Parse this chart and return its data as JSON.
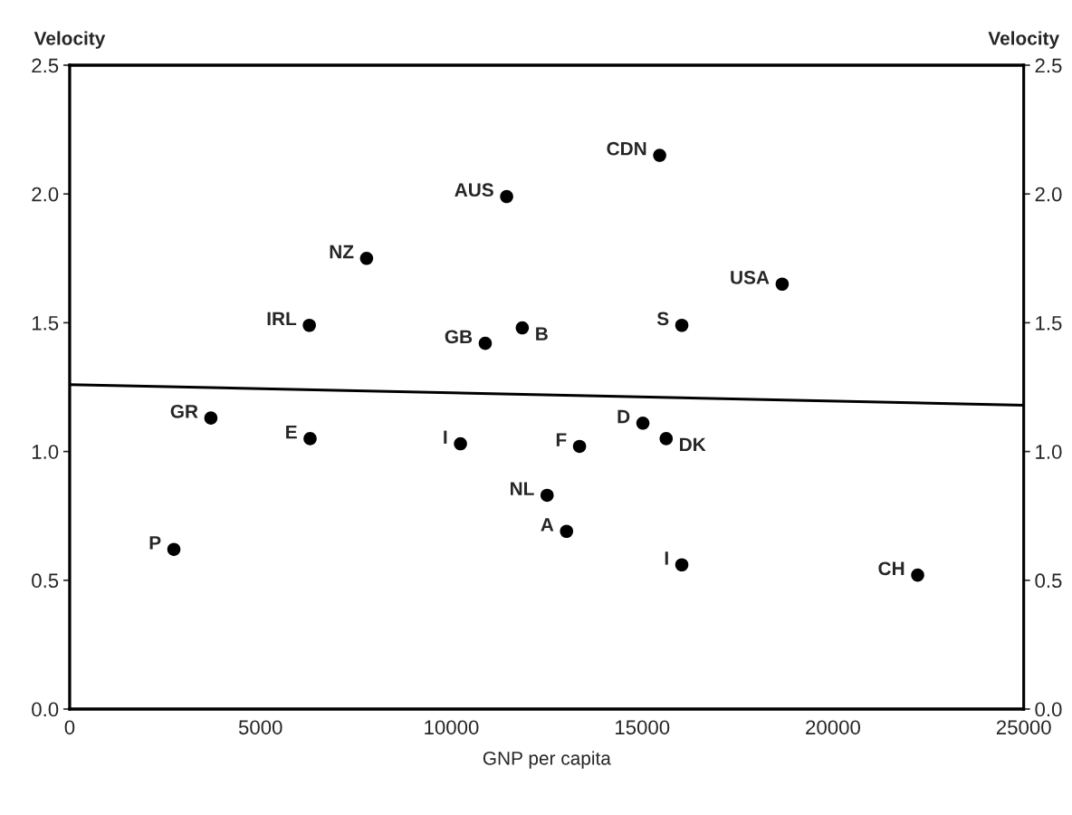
{
  "chart_data": {
    "type": "scatter",
    "xlabel": "GNP per capita",
    "ylabel": "Velocity",
    "y2label": "Velocity",
    "xlim": [
      0,
      25000
    ],
    "xticks": [
      0,
      5000,
      10000,
      15000,
      20000,
      25000
    ],
    "ylim": [
      0,
      2.5
    ],
    "yticks": [
      {
        "value": 0,
        "label": "0.0"
      },
      0.5,
      {
        "value": 1,
        "label": "1.0"
      },
      1.5,
      {
        "value": 2,
        "label": "2.0"
      },
      2.5
    ],
    "y2lim": [
      0,
      2.5
    ],
    "y2ticks": [
      {
        "value": 0,
        "label": "0.0"
      },
      0.5,
      {
        "value": 1,
        "label": "1.0"
      },
      1.5,
      {
        "value": 2,
        "label": "2.0"
      },
      2.5
    ],
    "grid": false,
    "legend": false,
    "series": [
      {
        "marker": "circle",
        "color": "#000000",
        "x": [
          15460,
          11450,
          7780,
          18670,
          6280,
          11860,
          16040,
          10890,
          3700,
          6300,
          10240,
          13360,
          15020,
          15630,
          12510,
          13020,
          2730,
          16040,
          22220
        ],
        "values": [
          2.15,
          1.99,
          1.75,
          1.65,
          1.49,
          1.48,
          1.49,
          1.42,
          1.13,
          1.05,
          1.03,
          1.02,
          1.11,
          1.05,
          0.83,
          0.69,
          0.62,
          0.56,
          0.52
        ]
      },
      {
        "type": "line",
        "color": "#000000",
        "x": [
          0,
          25000
        ],
        "values": [
          1.26,
          1.18
        ]
      }
    ],
    "annotations": [
      {
        "text": "CDN",
        "x": 15460,
        "y": 2.15
      },
      {
        "text": "AUS",
        "x": 11450,
        "y": 1.99
      },
      {
        "text": "NZ",
        "x": 7780,
        "y": 1.75
      },
      {
        "text": "USA",
        "x": 18670,
        "y": 1.65
      },
      {
        "text": "IRL",
        "x": 6280,
        "y": 1.49
      },
      {
        "text": "B",
        "x": 11860,
        "y": 1.48
      },
      {
        "text": "S",
        "x": 16040,
        "y": 1.49
      },
      {
        "text": "GB",
        "x": 10890,
        "y": 1.42
      },
      {
        "text": "GR",
        "x": 3700,
        "y": 1.13
      },
      {
        "text": "E",
        "x": 6300,
        "y": 1.05
      },
      {
        "text": "I",
        "x": 10240,
        "y": 1.03
      },
      {
        "text": "F",
        "x": 13360,
        "y": 1.02
      },
      {
        "text": "D",
        "x": 15020,
        "y": 1.11
      },
      {
        "text": "DK",
        "x": 15630,
        "y": 1.05
      },
      {
        "text": "NL",
        "x": 12510,
        "y": 0.83
      },
      {
        "text": "A",
        "x": 13020,
        "y": 0.69
      },
      {
        "text": "P",
        "x": 2730,
        "y": 0.62
      },
      {
        "text": "I",
        "x": 16040,
        "y": 0.56
      },
      {
        "text": "CH",
        "x": 22220,
        "y": 0.52
      }
    ]
  }
}
